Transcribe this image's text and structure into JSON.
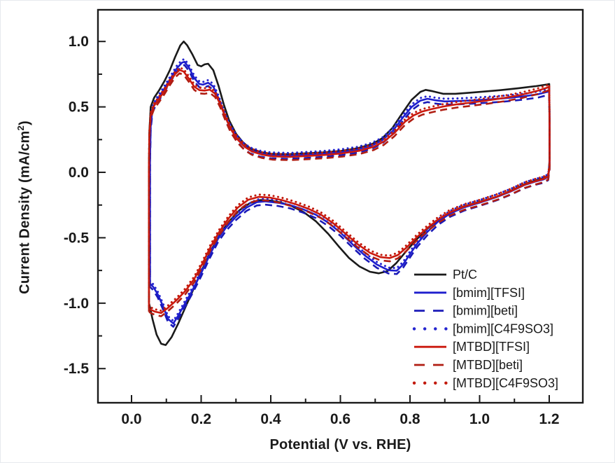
{
  "figure": {
    "ylabel_parts": {
      "pre": "Current Density (mA/cm",
      "sup": "2",
      "post": ")"
    }
  },
  "chart_data": {
    "type": "line",
    "title": "",
    "xlabel": "Potential (V vs. RHE)",
    "ylabel": "Current Density (mA/cm2)",
    "xlim": [
      -0.0965,
      1.2965
    ],
    "ylim": [
      -1.761,
      1.242
    ],
    "grid": false,
    "legend_position": "inside-lower-right",
    "axis_color": "#1a1a1a",
    "x_ticks": {
      "major": [
        {
          "v": 0.0,
          "label": "0.0"
        },
        {
          "v": 0.2,
          "label": "0.2"
        },
        {
          "v": 0.4,
          "label": "0.4"
        },
        {
          "v": 0.6,
          "label": "0.6"
        },
        {
          "v": 0.8,
          "label": "0.8"
        },
        {
          "v": 1.0,
          "label": "1.0"
        },
        {
          "v": 1.2,
          "label": "1.2"
        }
      ],
      "minor": [
        0.1,
        0.3,
        0.5,
        0.7,
        0.9,
        1.1
      ]
    },
    "y_ticks": {
      "major": [
        {
          "v": 1.0,
          "label": "1.0"
        },
        {
          "v": 0.5,
          "label": "0.5"
        },
        {
          "v": 0.0,
          "label": "0.0"
        },
        {
          "v": -0.5,
          "label": "-0.5"
        },
        {
          "v": -1.0,
          "label": "-1.0"
        },
        {
          "v": -1.5,
          "label": "-1.5"
        }
      ],
      "minor": [
        0.75,
        0.25,
        -0.25,
        -0.75,
        -1.25
      ]
    },
    "series": [
      {
        "name": "Pt/C",
        "color": "#1a1a1a",
        "style": "solid",
        "points": [
          [
            0.05,
            -1.0
          ],
          [
            0.05,
            -0.6
          ],
          [
            0.05,
            0.0
          ],
          [
            0.051,
            0.3
          ],
          [
            0.055,
            0.5
          ],
          [
            0.065,
            0.57
          ],
          [
            0.08,
            0.63
          ],
          [
            0.095,
            0.7
          ],
          [
            0.11,
            0.78
          ],
          [
            0.125,
            0.88
          ],
          [
            0.14,
            0.97
          ],
          [
            0.15,
            1.0
          ],
          [
            0.16,
            0.97
          ],
          [
            0.175,
            0.9
          ],
          [
            0.19,
            0.82
          ],
          [
            0.2,
            0.81
          ],
          [
            0.21,
            0.825
          ],
          [
            0.22,
            0.83
          ],
          [
            0.235,
            0.78
          ],
          [
            0.25,
            0.66
          ],
          [
            0.265,
            0.52
          ],
          [
            0.28,
            0.4
          ],
          [
            0.3,
            0.295
          ],
          [
            0.32,
            0.23
          ],
          [
            0.34,
            0.185
          ],
          [
            0.37,
            0.155
          ],
          [
            0.4,
            0.142
          ],
          [
            0.45,
            0.138
          ],
          [
            0.5,
            0.145
          ],
          [
            0.55,
            0.152
          ],
          [
            0.6,
            0.163
          ],
          [
            0.65,
            0.185
          ],
          [
            0.69,
            0.215
          ],
          [
            0.72,
            0.26
          ],
          [
            0.75,
            0.34
          ],
          [
            0.78,
            0.46
          ],
          [
            0.805,
            0.555
          ],
          [
            0.83,
            0.615
          ],
          [
            0.845,
            0.63
          ],
          [
            0.865,
            0.62
          ],
          [
            0.895,
            0.6
          ],
          [
            0.93,
            0.6
          ],
          [
            0.97,
            0.608
          ],
          [
            1.01,
            0.617
          ],
          [
            1.06,
            0.628
          ],
          [
            1.11,
            0.642
          ],
          [
            1.16,
            0.658
          ],
          [
            1.195,
            0.672
          ],
          [
            1.2,
            0.675
          ],
          [
            1.201,
            0.4
          ],
          [
            1.201,
            0.1
          ],
          [
            1.198,
            -0.02
          ],
          [
            1.185,
            -0.045
          ],
          [
            1.16,
            -0.063
          ],
          [
            1.13,
            -0.09
          ],
          [
            1.09,
            -0.14
          ],
          [
            1.05,
            -0.185
          ],
          [
            1.0,
            -0.225
          ],
          [
            0.955,
            -0.26
          ],
          [
            0.915,
            -0.305
          ],
          [
            0.88,
            -0.365
          ],
          [
            0.85,
            -0.43
          ],
          [
            0.82,
            -0.51
          ],
          [
            0.79,
            -0.6
          ],
          [
            0.76,
            -0.695
          ],
          [
            0.735,
            -0.755
          ],
          [
            0.71,
            -0.772
          ],
          [
            0.685,
            -0.76
          ],
          [
            0.655,
            -0.72
          ],
          [
            0.625,
            -0.655
          ],
          [
            0.595,
            -0.565
          ],
          [
            0.565,
            -0.47
          ],
          [
            0.53,
            -0.375
          ],
          [
            0.495,
            -0.305
          ],
          [
            0.46,
            -0.258
          ],
          [
            0.425,
            -0.228
          ],
          [
            0.395,
            -0.215
          ],
          [
            0.37,
            -0.212
          ],
          [
            0.34,
            -0.235
          ],
          [
            0.31,
            -0.29
          ],
          [
            0.28,
            -0.375
          ],
          [
            0.255,
            -0.47
          ],
          [
            0.23,
            -0.59
          ],
          [
            0.205,
            -0.73
          ],
          [
            0.18,
            -0.88
          ],
          [
            0.155,
            -1.03
          ],
          [
            0.135,
            -1.15
          ],
          [
            0.115,
            -1.26
          ],
          [
            0.098,
            -1.32
          ],
          [
            0.085,
            -1.31
          ],
          [
            0.072,
            -1.24
          ],
          [
            0.06,
            -1.12
          ],
          [
            0.052,
            -1.02
          ],
          [
            0.05,
            -1.0
          ]
        ]
      },
      {
        "name": "[bmim][TFSI]",
        "color": "#1e1ecd",
        "style": "solid",
        "points": [
          [
            0.053,
            -0.85
          ],
          [
            0.053,
            -0.4
          ],
          [
            0.053,
            0.1
          ],
          [
            0.055,
            0.35
          ],
          [
            0.06,
            0.48
          ],
          [
            0.07,
            0.54
          ],
          [
            0.085,
            0.6
          ],
          [
            0.1,
            0.665
          ],
          [
            0.115,
            0.73
          ],
          [
            0.13,
            0.795
          ],
          [
            0.145,
            0.838
          ],
          [
            0.152,
            0.845
          ],
          [
            0.165,
            0.8
          ],
          [
            0.18,
            0.72
          ],
          [
            0.195,
            0.675
          ],
          [
            0.205,
            0.67
          ],
          [
            0.22,
            0.685
          ],
          [
            0.235,
            0.655
          ],
          [
            0.25,
            0.565
          ],
          [
            0.265,
            0.455
          ],
          [
            0.28,
            0.36
          ],
          [
            0.3,
            0.27
          ],
          [
            0.32,
            0.21
          ],
          [
            0.34,
            0.17
          ],
          [
            0.37,
            0.145
          ],
          [
            0.4,
            0.132
          ],
          [
            0.45,
            0.128
          ],
          [
            0.5,
            0.135
          ],
          [
            0.55,
            0.143
          ],
          [
            0.6,
            0.155
          ],
          [
            0.65,
            0.175
          ],
          [
            0.69,
            0.205
          ],
          [
            0.72,
            0.245
          ],
          [
            0.75,
            0.315
          ],
          [
            0.78,
            0.42
          ],
          [
            0.805,
            0.5
          ],
          [
            0.83,
            0.548
          ],
          [
            0.85,
            0.562
          ],
          [
            0.87,
            0.552
          ],
          [
            0.9,
            0.542
          ],
          [
            0.94,
            0.545
          ],
          [
            0.98,
            0.55
          ],
          [
            1.03,
            0.558
          ],
          [
            1.08,
            0.568
          ],
          [
            1.13,
            0.582
          ],
          [
            1.17,
            0.598
          ],
          [
            1.195,
            0.615
          ],
          [
            1.2,
            0.62
          ],
          [
            1.201,
            0.35
          ],
          [
            1.201,
            0.05
          ],
          [
            1.197,
            -0.035
          ],
          [
            1.183,
            -0.055
          ],
          [
            1.158,
            -0.072
          ],
          [
            1.128,
            -0.098
          ],
          [
            1.088,
            -0.148
          ],
          [
            1.048,
            -0.19
          ],
          [
            1.0,
            -0.232
          ],
          [
            0.955,
            -0.268
          ],
          [
            0.915,
            -0.315
          ],
          [
            0.88,
            -0.378
          ],
          [
            0.85,
            -0.455
          ],
          [
            0.822,
            -0.54
          ],
          [
            0.8,
            -0.625
          ],
          [
            0.78,
            -0.705
          ],
          [
            0.762,
            -0.752
          ],
          [
            0.738,
            -0.748
          ],
          [
            0.705,
            -0.705
          ],
          [
            0.67,
            -0.635
          ],
          [
            0.635,
            -0.55
          ],
          [
            0.6,
            -0.46
          ],
          [
            0.565,
            -0.385
          ],
          [
            0.53,
            -0.325
          ],
          [
            0.492,
            -0.282
          ],
          [
            0.455,
            -0.25
          ],
          [
            0.42,
            -0.232
          ],
          [
            0.385,
            -0.222
          ],
          [
            0.36,
            -0.228
          ],
          [
            0.33,
            -0.27
          ],
          [
            0.3,
            -0.34
          ],
          [
            0.272,
            -0.42
          ],
          [
            0.248,
            -0.51
          ],
          [
            0.225,
            -0.63
          ],
          [
            0.2,
            -0.77
          ],
          [
            0.175,
            -0.9
          ],
          [
            0.152,
            -1.01
          ],
          [
            0.133,
            -1.1
          ],
          [
            0.12,
            -1.155
          ],
          [
            0.105,
            -1.12
          ],
          [
            0.09,
            -1.02
          ],
          [
            0.075,
            -0.93
          ],
          [
            0.062,
            -0.875
          ],
          [
            0.053,
            -0.85
          ]
        ]
      },
      {
        "name": "[bmim][beti]",
        "color": "#1a1ab8",
        "style": "dashed",
        "base": "[bmim][TFSI]",
        "offset_ma": -0.025
      },
      {
        "name": "[bmim][C4F9SO3]",
        "color": "#2525cf",
        "style": "dotted",
        "base": "[bmim][TFSI]",
        "offset_ma": 0.02
      },
      {
        "name": "[MTBD][TFSI]",
        "color": "#cb190e",
        "style": "solid",
        "points": [
          [
            0.05,
            -1.04
          ],
          [
            0.05,
            -0.55
          ],
          [
            0.05,
            0.0
          ],
          [
            0.051,
            0.28
          ],
          [
            0.055,
            0.44
          ],
          [
            0.065,
            0.51
          ],
          [
            0.08,
            0.565
          ],
          [
            0.095,
            0.625
          ],
          [
            0.11,
            0.69
          ],
          [
            0.125,
            0.75
          ],
          [
            0.138,
            0.782
          ],
          [
            0.15,
            0.77
          ],
          [
            0.165,
            0.715
          ],
          [
            0.18,
            0.655
          ],
          [
            0.195,
            0.628
          ],
          [
            0.21,
            0.625
          ],
          [
            0.225,
            0.632
          ],
          [
            0.24,
            0.6
          ],
          [
            0.255,
            0.52
          ],
          [
            0.27,
            0.42
          ],
          [
            0.285,
            0.33
          ],
          [
            0.305,
            0.25
          ],
          [
            0.325,
            0.195
          ],
          [
            0.345,
            0.16
          ],
          [
            0.375,
            0.135
          ],
          [
            0.405,
            0.122
          ],
          [
            0.455,
            0.118
          ],
          [
            0.505,
            0.125
          ],
          [
            0.555,
            0.133
          ],
          [
            0.605,
            0.145
          ],
          [
            0.655,
            0.165
          ],
          [
            0.695,
            0.195
          ],
          [
            0.725,
            0.235
          ],
          [
            0.755,
            0.3
          ],
          [
            0.785,
            0.385
          ],
          [
            0.81,
            0.435
          ],
          [
            0.835,
            0.465
          ],
          [
            0.86,
            0.482
          ],
          [
            0.895,
            0.503
          ],
          [
            0.935,
            0.52
          ],
          [
            0.975,
            0.533
          ],
          [
            1.02,
            0.548
          ],
          [
            1.07,
            0.568
          ],
          [
            1.12,
            0.592
          ],
          [
            1.165,
            0.622
          ],
          [
            1.195,
            0.648
          ],
          [
            1.2,
            0.655
          ],
          [
            1.201,
            0.35
          ],
          [
            1.201,
            0.05
          ],
          [
            1.197,
            -0.03
          ],
          [
            1.184,
            -0.05
          ],
          [
            1.16,
            -0.068
          ],
          [
            1.13,
            -0.093
          ],
          [
            1.09,
            -0.143
          ],
          [
            1.05,
            -0.185
          ],
          [
            1.0,
            -0.228
          ],
          [
            0.955,
            -0.262
          ],
          [
            0.915,
            -0.305
          ],
          [
            0.88,
            -0.362
          ],
          [
            0.85,
            -0.425
          ],
          [
            0.82,
            -0.495
          ],
          [
            0.79,
            -0.575
          ],
          [
            0.765,
            -0.632
          ],
          [
            0.742,
            -0.655
          ],
          [
            0.715,
            -0.648
          ],
          [
            0.685,
            -0.615
          ],
          [
            0.65,
            -0.55
          ],
          [
            0.615,
            -0.47
          ],
          [
            0.58,
            -0.39
          ],
          [
            0.545,
            -0.325
          ],
          [
            0.508,
            -0.278
          ],
          [
            0.47,
            -0.242
          ],
          [
            0.432,
            -0.212
          ],
          [
            0.398,
            -0.193
          ],
          [
            0.365,
            -0.188
          ],
          [
            0.335,
            -0.21
          ],
          [
            0.305,
            -0.27
          ],
          [
            0.278,
            -0.355
          ],
          [
            0.252,
            -0.455
          ],
          [
            0.228,
            -0.565
          ],
          [
            0.205,
            -0.69
          ],
          [
            0.18,
            -0.815
          ],
          [
            0.155,
            -0.905
          ],
          [
            0.13,
            -0.975
          ],
          [
            0.105,
            -1.035
          ],
          [
            0.085,
            -1.075
          ],
          [
            0.068,
            -1.065
          ],
          [
            0.055,
            -1.05
          ],
          [
            0.05,
            -1.04
          ]
        ]
      },
      {
        "name": "[MTBD][beti]",
        "color": "#b01d12",
        "style": "dashed",
        "base": "[MTBD][TFSI]",
        "offset_ma": -0.025
      },
      {
        "name": "[MTBD][C4F9SO3]",
        "color": "#c21a0c",
        "style": "dotted",
        "base": "[MTBD][TFSI]",
        "offset_ma": 0.018
      }
    ]
  }
}
